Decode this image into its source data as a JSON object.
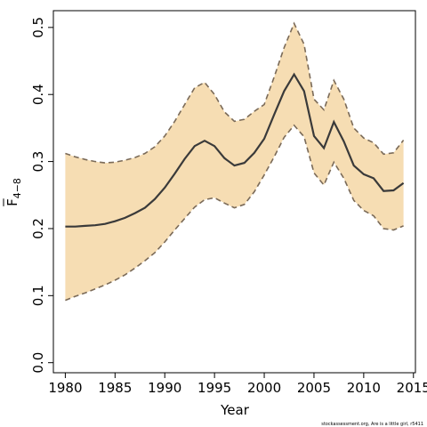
{
  "chart_data": {
    "type": "line",
    "xlabel": "Year",
    "ylabel": "F",
    "ylabel_overbar": true,
    "ylabel_subscript": "4−8",
    "xlim": [
      1978.8,
      2015.2
    ],
    "ylim": [
      -0.015,
      0.525
    ],
    "x_ticks": [
      1980,
      1985,
      1990,
      1995,
      2000,
      2005,
      2010,
      2015
    ],
    "y_ticks": [
      0.0,
      0.1,
      0.2,
      0.3,
      0.4,
      0.5
    ],
    "y_tick_labels": [
      "0.0",
      "0.1",
      "0.2",
      "0.3",
      "0.4",
      "0.5"
    ],
    "grid": false,
    "series": [
      {
        "role": "estimate",
        "color": "#3a3a3a",
        "x": [
          1980,
          1981,
          1982,
          1983,
          1984,
          1985,
          1986,
          1987,
          1988,
          1989,
          1990,
          1991,
          1992,
          1993,
          1994,
          1995,
          1996,
          1997,
          1998,
          1999,
          2000,
          2001,
          2002,
          2003,
          2004,
          2005,
          2006,
          2007,
          2008,
          2009,
          2010,
          2011,
          2012,
          2013,
          2014
        ],
        "y": [
          0.203,
          0.203,
          0.204,
          0.205,
          0.207,
          0.211,
          0.216,
          0.223,
          0.231,
          0.244,
          0.261,
          0.282,
          0.304,
          0.323,
          0.331,
          0.323,
          0.305,
          0.294,
          0.298,
          0.313,
          0.334,
          0.37,
          0.405,
          0.43,
          0.405,
          0.338,
          0.32,
          0.359,
          0.33,
          0.294,
          0.281,
          0.275,
          0.256,
          0.257,
          0.268
        ]
      },
      {
        "role": "upper",
        "color": "#7a6a58",
        "x": [
          1980,
          1981,
          1982,
          1983,
          1984,
          1985,
          1986,
          1987,
          1988,
          1989,
          1990,
          1991,
          1992,
          1993,
          1994,
          1995,
          1996,
          1997,
          1998,
          1999,
          2000,
          2001,
          2002,
          2003,
          2004,
          2005,
          2006,
          2007,
          2008,
          2009,
          2010,
          2011,
          2012,
          2013,
          2014
        ],
        "y": [
          0.312,
          0.307,
          0.303,
          0.3,
          0.298,
          0.299,
          0.302,
          0.306,
          0.312,
          0.322,
          0.338,
          0.36,
          0.385,
          0.41,
          0.418,
          0.4,
          0.374,
          0.36,
          0.363,
          0.375,
          0.385,
          0.426,
          0.47,
          0.506,
          0.475,
          0.393,
          0.377,
          0.421,
          0.393,
          0.35,
          0.335,
          0.328,
          0.311,
          0.313,
          0.332
        ]
      },
      {
        "role": "lower",
        "color": "#7a6a58",
        "x": [
          1980,
          1981,
          1982,
          1983,
          1984,
          1985,
          1986,
          1987,
          1988,
          1989,
          1990,
          1991,
          1992,
          1993,
          1994,
          1995,
          1996,
          1997,
          1998,
          1999,
          2000,
          2001,
          2002,
          2003,
          2004,
          2005,
          2006,
          2007,
          2008,
          2009,
          2010,
          2011,
          2012,
          2013,
          2014
        ],
        "y": [
          0.093,
          0.099,
          0.104,
          0.11,
          0.116,
          0.123,
          0.131,
          0.141,
          0.152,
          0.164,
          0.18,
          0.198,
          0.215,
          0.232,
          0.243,
          0.246,
          0.238,
          0.231,
          0.236,
          0.255,
          0.28,
          0.307,
          0.336,
          0.354,
          0.337,
          0.283,
          0.265,
          0.299,
          0.275,
          0.242,
          0.227,
          0.219,
          0.2,
          0.198,
          0.204
        ]
      }
    ],
    "band_fill": "#f6ddb3",
    "footer": "stockassessment.org,  Are  is  a  little  girl,  r5411"
  }
}
